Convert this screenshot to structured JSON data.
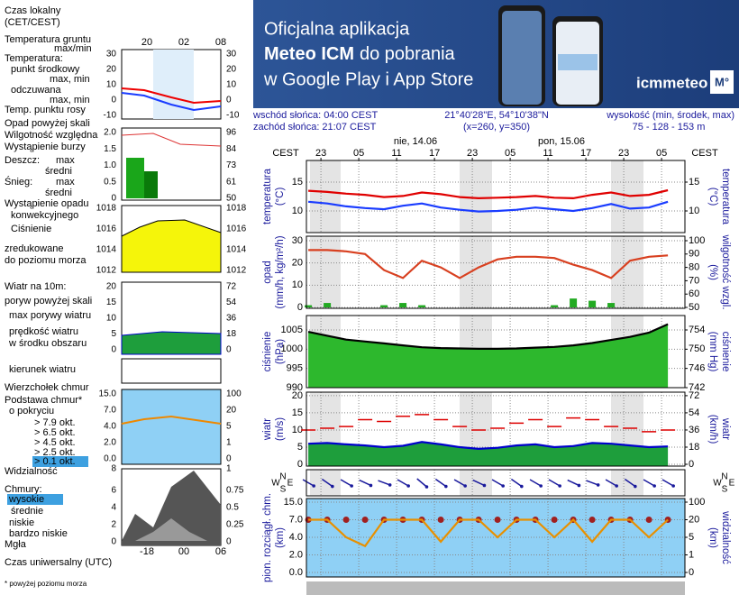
{
  "banner": {
    "line1": "Oficjalna aplikacja",
    "line2_bold": "Meteo ICM",
    "line2_rest": "do pobrania",
    "line3": "w Google Play i App Store",
    "logo": "icmmeteo",
    "logo_badge": "M°"
  },
  "info": {
    "sunrise": "wschód słońca: 04:00 CEST",
    "sunset": "zachód słońca: 21:07 CEST",
    "coordinates": "21°40'28\"E, 54°10'38\"N",
    "grid_point": "(x=260, y=350)",
    "elevation_title": "wysokość (min, środek, max)",
    "elevation": "75 - 128 - 153 m"
  },
  "legend": {
    "items": [
      {
        "text": "Czas lokalny",
        "color": "#000"
      },
      {
        "text": "(CET/CEST)",
        "color": "#000"
      },
      {
        "text": "Temperatura gruntu",
        "color": "#c00"
      },
      {
        "text": "max/min",
        "color": "#c00"
      },
      {
        "text": "Temperatura:",
        "color": "#000"
      },
      {
        "text": "punkt środkowy",
        "color": "#c00"
      },
      {
        "text": "max, min",
        "color": "#f0a8a8"
      },
      {
        "text": "odczuwana",
        "color": "#00c"
      },
      {
        "text": "max, min",
        "color": "#a8a8f0"
      },
      {
        "text": "Temp. punktu rosy",
        "color": "#00c"
      },
      {
        "text": "Opad powyżej skali",
        "color": "#c00"
      },
      {
        "text": "Wilgotność względna",
        "color": "#c00"
      },
      {
        "text": "Wystąpienie burzy",
        "color": "#000"
      },
      {
        "text": "Deszcz:",
        "color": "#080"
      },
      {
        "text": "max",
        "color": "#080"
      },
      {
        "text": "średni",
        "color": "#080"
      },
      {
        "text": "Śnieg:",
        "color": "#00c"
      },
      {
        "text": "max",
        "color": "#00c"
      },
      {
        "text": "średni",
        "color": "#00c"
      },
      {
        "text": "Wystąpienie opadu",
        "color": "#c00"
      },
      {
        "text": "konwekcyjnego",
        "color": "#c00"
      },
      {
        "text": "Ciśnienie",
        "color": "#000"
      },
      {
        "text": "zredukowane",
        "color": "#000"
      },
      {
        "text": "do poziomu morza",
        "color": "#000"
      },
      {
        "text": "Wiatr na 10m:",
        "color": "#000"
      },
      {
        "text": "poryw powyżej skali",
        "color": "#c00"
      },
      {
        "text": "max porywy wiatru",
        "color": "#c00"
      },
      {
        "text": "prędkość wiatru",
        "color": "#00c"
      },
      {
        "text": "w środku obszaru",
        "color": "#00c"
      },
      {
        "text": "kierunek wiatru",
        "color": "#00c"
      },
      {
        "text": "Wierzchołek chmur",
        "color": "#c00"
      },
      {
        "text": "Podstawa chmur*",
        "color": "#000"
      },
      {
        "text": "o pokryciu",
        "color": "#000"
      },
      {
        "text": "> 7.9 okt.",
        "color": "#000"
      },
      {
        "text": "> 6.5 okt.",
        "color": "#000"
      },
      {
        "text": "> 4.5 okt.",
        "color": "#888"
      },
      {
        "text": "> 2.5 okt.",
        "color": "#ccc"
      },
      {
        "text": "> 0.1 okt.",
        "color": "#fff",
        "background": "#3da0e0"
      },
      {
        "text": "Widzialność",
        "color": "#e80"
      },
      {
        "text": "Chmury:",
        "color": "#000"
      },
      {
        "text": "wysokie",
        "color": "#fff",
        "background": "#3da0e0"
      },
      {
        "text": "średnie",
        "color": "#aaa"
      },
      {
        "text": "niskie",
        "color": "#000"
      },
      {
        "text": "bardzo niskie",
        "color": "#000"
      },
      {
        "text": "Mgła",
        "color": "#e80"
      },
      {
        "text": "Czas uniwersalny (UTC)",
        "color": "#000"
      },
      {
        "text": "* powyżej poziomu morza",
        "color": "#000"
      }
    ],
    "local_hours": [
      "20",
      "02",
      "08"
    ],
    "utc_hours": [
      "-18",
      "00",
      "06"
    ],
    "axes": [
      {
        "left": [
          "30",
          "20",
          "10",
          "0",
          "-10"
        ],
        "right": [
          "30",
          "20",
          "10",
          "0",
          "-10"
        ],
        "right_color": "#000"
      },
      {
        "left": [
          "2.0",
          "1.5",
          "1.0",
          "0.5",
          "0"
        ],
        "right": [
          "96",
          "84",
          "73",
          "61",
          "50"
        ],
        "right_color": "#c40"
      },
      {
        "left": [
          "1018",
          "1016",
          "1014",
          "1012"
        ],
        "right": [
          "1018",
          "1016",
          "1014",
          "1012"
        ],
        "right_color": "#000"
      },
      {
        "left": [
          "20",
          "15",
          "10",
          "5",
          "0"
        ],
        "right": [
          "72",
          "54",
          "36",
          "18",
          "0"
        ],
        "right_color": "#000"
      },
      {
        "left": [
          "15.0",
          "7.0",
          "4.0",
          "2.0",
          "0.0"
        ],
        "right": [
          "100",
          "20",
          "5",
          "1",
          "0"
        ],
        "right_color": "#c40"
      },
      {
        "left": [
          "8"
        ],
        "right": [
          "1"
        ],
        "right_color": "#e80"
      },
      {
        "left": [
          "6",
          "4",
          "2",
          "0"
        ],
        "right": [
          "0.75",
          "0.5",
          "0.25",
          "0"
        ],
        "right_color": "#e80"
      }
    ]
  },
  "chart_data": [
    {
      "type": "line",
      "y_label": [
        "temperatura",
        "(°C)"
      ],
      "y2_label": [
        "(°C)",
        "temperatura"
      ],
      "time_zone": "CEST",
      "day_labels": [
        "nie, 14.06",
        "pon, 15.06"
      ],
      "x": [
        -3,
        0,
        3,
        6,
        9,
        12,
        15,
        18,
        21,
        24,
        27,
        30,
        33,
        36,
        39,
        42,
        45,
        48,
        51,
        54
      ],
      "xlim": [
        -3.3,
        56.7
      ],
      "xticks": [
        {
          "value": -1,
          "label": "23"
        },
        {
          "value": 5,
          "label": "05"
        },
        {
          "value": 11,
          "label": "11"
        },
        {
          "value": 17,
          "label": "17"
        },
        {
          "value": 23,
          "label": "23"
        },
        {
          "value": 29,
          "label": "05"
        },
        {
          "value": 35,
          "label": "11"
        },
        {
          "value": 41,
          "label": "17"
        },
        {
          "value": 47,
          "label": "23"
        },
        {
          "value": 53,
          "label": "05"
        }
      ],
      "ylim": [
        6.25,
        18.75
      ],
      "yticks": [
        10,
        15
      ],
      "y2lim": [
        6.25,
        18.75
      ],
      "y2ticks": [
        10,
        15
      ],
      "series": [
        {
          "color": "#e00000",
          "values": [
            13.5,
            13.3,
            13,
            12.8,
            12.4,
            12.6,
            13.2,
            12.9,
            12.4,
            12.2,
            12.3,
            12.4,
            12.6,
            12.3,
            12.2,
            12.8,
            13.2,
            12.6,
            12.8,
            13.6
          ]
        },
        {
          "color": "#1a3cff",
          "values": [
            11.6,
            11.3,
            10.8,
            10.5,
            10.3,
            10.9,
            11.3,
            10.6,
            10.2,
            9.9,
            10,
            10.2,
            10.6,
            10.3,
            10,
            10.5,
            11.2,
            10.4,
            10.6,
            11.6
          ]
        }
      ]
    },
    {
      "type": "combo",
      "y_label": [
        "opad",
        "(mm/h, kg/m²/h)"
      ],
      "y2_label": [
        "(%)",
        "wilgotność wzgl."
      ],
      "x": [
        -3,
        0,
        3,
        6,
        9,
        12,
        15,
        18,
        21,
        24,
        27,
        30,
        33,
        36,
        39,
        42,
        45,
        48,
        51,
        54
      ],
      "xlim": [
        -3.3,
        56.7
      ],
      "ylim": [
        0,
        30
      ],
      "yticks": [
        0,
        10,
        20,
        30
      ],
      "y2lim": [
        50,
        100
      ],
      "y2ticks": [
        50,
        60,
        70,
        80,
        90,
        100
      ],
      "series": [
        {
          "type": "bar",
          "color": "#22aa22",
          "values": [
            1,
            2,
            0,
            0,
            1,
            2,
            1,
            0,
            0,
            0,
            0,
            0,
            0,
            1,
            4,
            3,
            2,
            0,
            0,
            0
          ]
        },
        {
          "type": "line",
          "axis": "y2",
          "color": "#d84020",
          "values": [
            93,
            93,
            92,
            90,
            78,
            72,
            85,
            80,
            72,
            80,
            86,
            88,
            88,
            87,
            82,
            78,
            72,
            85,
            88,
            89
          ]
        }
      ]
    },
    {
      "type": "area",
      "y_label": [
        "ciśnienie",
        "(hPa)"
      ],
      "y2_label": [
        "(mm Hg)",
        "ciśnienie"
      ],
      "x": [
        -3,
        0,
        3,
        6,
        9,
        12,
        15,
        18,
        21,
        24,
        27,
        30,
        33,
        36,
        39,
        42,
        45,
        48,
        51,
        54
      ],
      "xlim": [
        -3.3,
        56.7
      ],
      "ylim": [
        990,
        1008.75
      ],
      "yticks": [
        990,
        995,
        1000,
        1005
      ],
      "y2lim": [
        742,
        757
      ],
      "y2ticks": [
        742,
        746,
        750,
        754
      ],
      "fill": "#2db82d",
      "series": [
        {
          "color": "#000",
          "values": [
            1004.5,
            1003.5,
            1002.5,
            1002,
            1001.5,
            1001,
            1000.5,
            1000.3,
            1000.2,
            1000.1,
            1000.1,
            1000.2,
            1000.4,
            1000.6,
            1001,
            1001.6,
            1002.4,
            1003.2,
            1004.3,
            1006.5
          ]
        }
      ]
    },
    {
      "type": "wind",
      "y_label": [
        "wiatr",
        "(m/s)"
      ],
      "y2_label": [
        "(km/h)",
        "wiatr"
      ],
      "x": [
        -3,
        0,
        3,
        6,
        9,
        12,
        15,
        18,
        21,
        24,
        27,
        30,
        33,
        36,
        39,
        42,
        45,
        48,
        51,
        54
      ],
      "xlim": [
        -3.3,
        56.7
      ],
      "ylim": [
        0,
        20.5
      ],
      "yticks": [
        0,
        5,
        10,
        15,
        20
      ],
      "y2lim": [
        0,
        73.8
      ],
      "y2ticks": [
        0,
        18,
        36,
        54,
        72
      ],
      "fill": "#1e9e3c",
      "series": [
        {
          "type": "area",
          "color": "#0000cc",
          "values": [
            6,
            6.2,
            5.8,
            5.5,
            5,
            5.4,
            6.5,
            5.8,
            5,
            4.5,
            4.8,
            5.5,
            5.8,
            5,
            5.3,
            6.2,
            6,
            5.5,
            5,
            5.2
          ]
        },
        {
          "type": "dash",
          "color": "#dd0000",
          "values": [
            10,
            10.5,
            11,
            13,
            12.5,
            14,
            14.5,
            13,
            11,
            10,
            10.5,
            12,
            13,
            11,
            13.5,
            13,
            11,
            10.5,
            9.5,
            10
          ]
        }
      ]
    },
    {
      "type": "arrows",
      "compass": [
        "N",
        "E",
        "S",
        "W"
      ],
      "x": [
        -3,
        0,
        3,
        6,
        9,
        12,
        15,
        18,
        21,
        24,
        27,
        30,
        33,
        36,
        39,
        42,
        45,
        48,
        51,
        54
      ],
      "xlim": [
        -3.3,
        56.7
      ],
      "color": "#1a1a9c",
      "values": [
        300,
        305,
        300,
        295,
        290,
        300,
        310,
        305,
        300,
        295,
        300,
        305,
        300,
        300,
        295,
        290,
        300,
        305,
        300,
        300
      ]
    },
    {
      "type": "cloud",
      "y_label": [
        "pion. rozciągł. chm.",
        "(km)"
      ],
      "y2_label": [
        "(km)",
        "widzialność"
      ],
      "yscale": "tick-spaced",
      "background": "#8fd0f5",
      "x": [
        -3,
        0,
        3,
        6,
        9,
        12,
        15,
        18,
        21,
        24,
        27,
        30,
        33,
        36,
        39,
        42,
        45,
        48,
        51,
        54
      ],
      "xlim": [
        -3.3,
        56.7
      ],
      "ylim": [
        0,
        15
      ],
      "yticks": [
        {
          "value": 0,
          "label": "0.0"
        },
        {
          "value": 2,
          "label": "2.0"
        },
        {
          "value": 4,
          "label": "4.0"
        },
        {
          "value": 7,
          "label": "7.0"
        },
        {
          "value": 15,
          "label": "15.0"
        }
      ],
      "y2lim": [
        0,
        100
      ],
      "y2ticks": [
        0,
        1,
        5,
        20,
        100
      ],
      "series": [
        {
          "type": "dot",
          "color": "#a02020",
          "values": [
            7,
            7,
            7,
            7,
            7,
            7,
            7,
            7,
            7,
            7,
            7,
            7,
            7,
            7,
            7,
            7,
            7,
            7,
            7,
            7
          ]
        },
        {
          "type": "line",
          "axis": "y2",
          "color": "#e89000",
          "values": [
            20,
            20,
            5,
            3,
            20,
            20,
            20,
            4,
            20,
            20,
            5,
            20,
            20,
            5,
            20,
            4,
            20,
            20,
            5,
            20
          ]
        }
      ]
    }
  ]
}
